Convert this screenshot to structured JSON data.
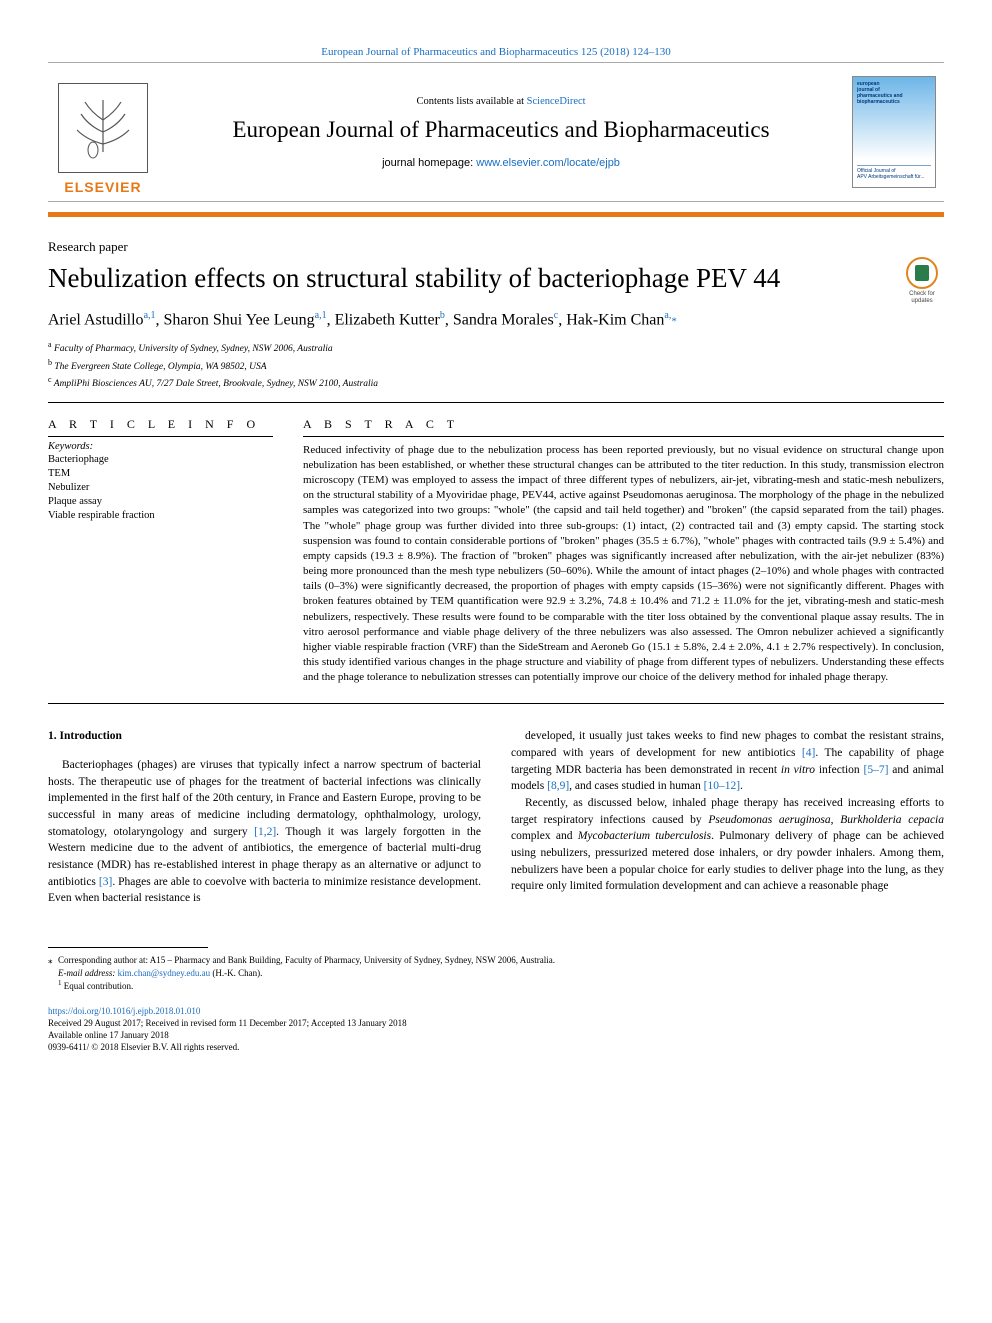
{
  "journal_ref_link": "European Journal of Pharmaceutics and Biopharmaceutics 125 (2018) 124–130",
  "header": {
    "elsevier_label": "ELSEVIER",
    "contents_prefix": "Contents lists available at ",
    "contents_link": "ScienceDirect",
    "journal_name": "European Journal of Pharmaceutics and Biopharmaceutics",
    "homepage_prefix": "journal homepage: ",
    "homepage_link": "www.elsevier.com/locate/ejpb",
    "cover_title_lines": "european\njournal of\npharmaceutics and\nbiopharmaceutics",
    "cover_bottom": "Official Journal of\nAPV Arbeitsgemeinschaft für..."
  },
  "badge": {
    "label": "Check for\nupdates"
  },
  "article": {
    "type": "Research paper",
    "title": "Nebulization effects on structural stability of bacteriophage PEV 44",
    "authors_html": "Ariel Astudillo<sup>a,1</sup>, Sharon Shui Yee Leung<sup>a,1</sup>, Elizabeth Kutter<sup>b</sup>, Sandra Morales<sup>c</sup>, Hak-Kim Chan<sup>a,</sup><span class=\"asterisk\">*</span>",
    "affiliations": [
      {
        "sup": "a",
        "text": "Faculty of Pharmacy, University of Sydney, Sydney, NSW 2006, Australia"
      },
      {
        "sup": "b",
        "text": "The Evergreen State College, Olympia, WA 98502, USA"
      },
      {
        "sup": "c",
        "text": "AmpliPhi Biosciences AU, 7/27 Dale Street, Brookvale, Sydney, NSW 2100, Australia"
      }
    ]
  },
  "info": {
    "heading": "A R T I C L E  I N F O",
    "keywords_label": "Keywords:",
    "keywords": [
      "Bacteriophage",
      "TEM",
      "Nebulizer",
      "Plaque assay",
      "Viable respirable fraction"
    ]
  },
  "abstract": {
    "heading": "A B S T R A C T",
    "text": "Reduced infectivity of phage due to the nebulization process has been reported previously, but no visual evidence on structural change upon nebulization has been established, or whether these structural changes can be attributed to the titer reduction. In this study, transmission electron microscopy (TEM) was employed to assess the impact of three different types of nebulizers, air-jet, vibrating-mesh and static-mesh nebulizers, on the structural stability of a Myoviridae phage, PEV44, active against Pseudomonas aeruginosa. The morphology of the phage in the nebulized samples was categorized into two groups: \"whole\" (the capsid and tail held together) and \"broken\" (the capsid separated from the tail) phages. The \"whole\" phage group was further divided into three sub-groups: (1) intact, (2) contracted tail and (3) empty capsid. The starting stock suspension was found to contain considerable portions of \"broken\" phages (35.5 ± 6.7%), \"whole\" phages with contracted tails (9.9 ± 5.4%) and empty capsids (19.3 ± 8.9%). The fraction of \"broken\" phages was significantly increased after nebulization, with the air-jet nebulizer (83%) being more pronounced than the mesh type nebulizers (50–60%). While the amount of intact phages (2–10%) and whole phages with contracted tails (0–3%) were significantly decreased, the proportion of phages with empty capsids (15–36%) were not significantly different. Phages with broken features obtained by TEM quantification were 92.9 ± 3.2%, 74.8 ± 10.4% and 71.2 ± 11.0% for the jet, vibrating-mesh and static-mesh nebulizers, respectively. These results were found to be comparable with the titer loss obtained by the conventional plaque assay results. The in vitro aerosol performance and viable phage delivery of the three nebulizers was also assessed. The Omron nebulizer achieved a significantly higher viable respirable fraction (VRF) than the SideStream and Aeroneb Go (15.1 ± 5.8%, 2.4 ± 2.0%, 4.1 ± 2.7% respectively). In conclusion, this study identified various changes in the phage structure and viability of phage from different types of nebulizers. Understanding these effects and the phage tolerance to nebulization stresses can potentially improve our choice of the delivery method for inhaled phage therapy."
  },
  "body": {
    "heading": "1. Introduction",
    "p1": "Bacteriophages (phages) are viruses that typically infect a narrow spectrum of bacterial hosts. The therapeutic use of phages for the treatment of bacterial infections was clinically implemented in the first half of the 20th century, in France and Eastern Europe, proving to be successful in many areas of medicine including dermatology, ophthalmology, urology, stomatology, otolaryngology and surgery <span class=\"ref-link\">[1,2]</span>. Though it was largely forgotten in the Western medicine due to the advent of antibiotics, the emergence of bacterial multi-drug resistance (MDR) has re-established interest in phage therapy as an alternative or adjunct to antibiotics <span class=\"ref-link\">[3]</span>. Phages are able to coevolve with bacteria to minimize resistance development. Even when bacterial resistance is",
    "p2": "developed, it usually just takes weeks to find new phages to combat the resistant strains, compared with years of development for new antibiotics <span class=\"ref-link\">[4]</span>. The capability of phage targeting MDR bacteria has been demonstrated in recent <em>in vitro</em> infection <span class=\"ref-link\">[5–7]</span> and animal models <span class=\"ref-link\">[8,9]</span>, and cases studied in human <span class=\"ref-link\">[10–12]</span>.",
    "p3": "Recently, as discussed below, inhaled phage therapy has received increasing efforts to target respiratory infections caused by <em>Pseudomonas aeruginosa</em>, <em>Burkholderia cepacia</em> complex and <em>Mycobacterium tuberculosis</em>. Pulmonary delivery of phage can be achieved using nebulizers, pressurized metered dose inhalers, or dry powder inhalers. Among them, nebulizers have been a popular choice for early studies to deliver phage into the lung, as they require only limited formulation development and can achieve a reasonable phage"
  },
  "footnotes": {
    "corresponding": "Corresponding author at: A15 – Pharmacy and Bank Building, Faculty of Pharmacy, University of Sydney, Sydney, NSW 2006, Australia.",
    "email_label": "E-mail address: ",
    "email_link": "kim.chan@sydney.edu.au",
    "email_suffix": " (H.-K. Chan).",
    "equal": "Equal contribution."
  },
  "pubinfo": {
    "doi": "https://doi.org/10.1016/j.ejpb.2018.01.010",
    "history": "Received 29 August 2017; Received in revised form 11 December 2017; Accepted 13 January 2018",
    "online": "Available online 17 January 2018",
    "copyright": "0939-6411/ © 2018 Elsevier B.V. All rights reserved."
  },
  "colors": {
    "accent_orange": "#e67817",
    "link_blue": "#1a6ec1",
    "cover_blue_top": "#6db5e8",
    "badge_green": "#2a7d4a",
    "badge_ring": "#e0851e"
  }
}
